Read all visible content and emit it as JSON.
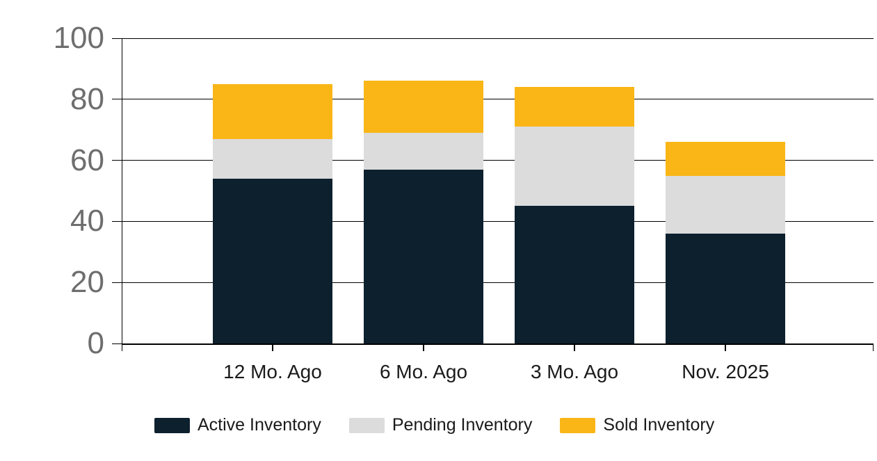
{
  "chart_data": {
    "type": "bar",
    "stacked": true,
    "categories": [
      "12 Mo. Ago",
      "6 Mo. Ago",
      "3 Mo. Ago",
      "Nov. 2025"
    ],
    "series": [
      {
        "name": "Active Inventory",
        "color": "#0d202e",
        "values": [
          54,
          57,
          45,
          36
        ]
      },
      {
        "name": "Pending Inventory",
        "color": "#dcdcdc",
        "values": [
          13,
          12,
          26,
          19
        ]
      },
      {
        "name": "Sold Inventory",
        "color": "#f9b616",
        "values": [
          18,
          17,
          13,
          11
        ]
      }
    ],
    "title": "",
    "xlabel": "",
    "ylabel": "",
    "ylim": [
      0,
      100
    ],
    "yticks": [
      0,
      20,
      40,
      60,
      80,
      100
    ],
    "grid": "horizontal",
    "legend_position": "bottom",
    "colors": {
      "axis": "#000000",
      "tick_label": "#6e6e6e",
      "category_label": "#1a1a1a",
      "background": "#ffffff"
    }
  }
}
